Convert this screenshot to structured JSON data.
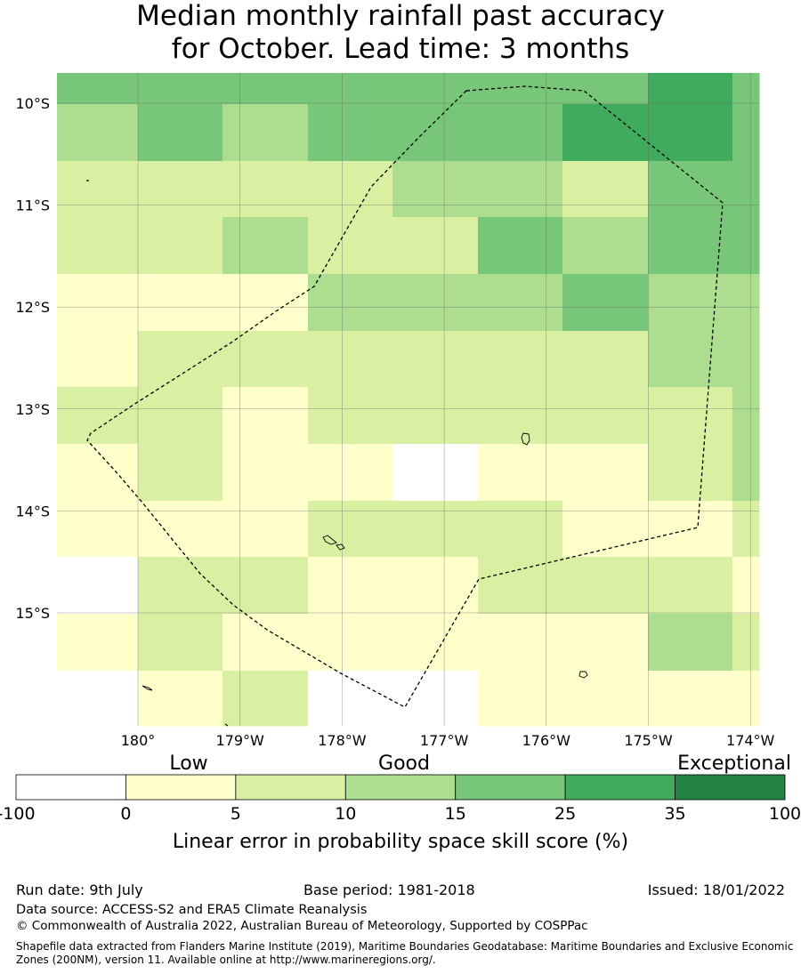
{
  "title": {
    "line1": "Median monthly rainfall past accuracy",
    "line2": "for October. Lead time: 3 months"
  },
  "map": {
    "lat_ticks": [
      "10°S",
      "11°S",
      "12°S",
      "13°S",
      "14°S",
      "15°S"
    ],
    "lon_ticks": [
      "180°",
      "179°W",
      "178°W",
      "177°W",
      "176°W",
      "175°W",
      "174°W"
    ],
    "lat_values": [
      -10,
      -11,
      -12,
      -13,
      -14,
      -15
    ],
    "lon_values": [
      -180,
      -179,
      -178,
      -177,
      -176,
      -175,
      -174
    ],
    "class_colors": [
      "#ffffff",
      "#ffffcc",
      "#d9f0a3",
      "#addd8e",
      "#78c679",
      "#41ab5d",
      "#238443"
    ],
    "grid_rows": [
      [
        4,
        4,
        4,
        4,
        4,
        4,
        4,
        5,
        4
      ],
      [
        3,
        4,
        3,
        4,
        4,
        4,
        5,
        5,
        4
      ],
      [
        2,
        2,
        2,
        2,
        3,
        3,
        2,
        4,
        4
      ],
      [
        2,
        2,
        3,
        2,
        2,
        4,
        3,
        4,
        4
      ],
      [
        1,
        1,
        1,
        3,
        3,
        3,
        4,
        3,
        3
      ],
      [
        1,
        2,
        2,
        2,
        2,
        2,
        2,
        3,
        3
      ],
      [
        2,
        2,
        1,
        2,
        2,
        2,
        2,
        2,
        3
      ],
      [
        1,
        2,
        1,
        1,
        0,
        1,
        1,
        2,
        3
      ],
      [
        1,
        1,
        1,
        2,
        2,
        2,
        1,
        1,
        2
      ],
      [
        0,
        2,
        2,
        1,
        1,
        2,
        2,
        2,
        1
      ],
      [
        1,
        2,
        1,
        1,
        1,
        1,
        1,
        3,
        2
      ],
      [
        0,
        1,
        2,
        0,
        0,
        1,
        1,
        1,
        1
      ]
    ]
  },
  "legend": {
    "qualitative": [
      "Low",
      "Good",
      "Exceptional"
    ],
    "bin_labels": [
      "-100",
      "0",
      "5",
      "10",
      "15",
      "25",
      "35",
      "100"
    ],
    "colors": [
      "#ffffff",
      "#ffffcc",
      "#d9f0a3",
      "#addd8e",
      "#78c679",
      "#41ab5d",
      "#238443"
    ],
    "axis_label": "Linear error in probability space skill score (%)"
  },
  "footer": {
    "run_date": "Run date: 9th July",
    "base_period": "Base period: 1981-2018",
    "issued": "Issued: 18/01/2022",
    "data_source": "Data source: ACCESS-S2 and ERA5 Climate Reanalysis",
    "copyright": "© Commonwealth of Australia 2022, Australian Bureau of Meteorology, Supported by COSPPac",
    "shapefile": "Shapefile data extracted from Flanders Marine Institute (2019), Maritime Boundaries Geodatabase: Maritime Boundaries and Exclusive Economic Zones (200NM), version 11. Available online at http://www.marineregions.org/."
  }
}
